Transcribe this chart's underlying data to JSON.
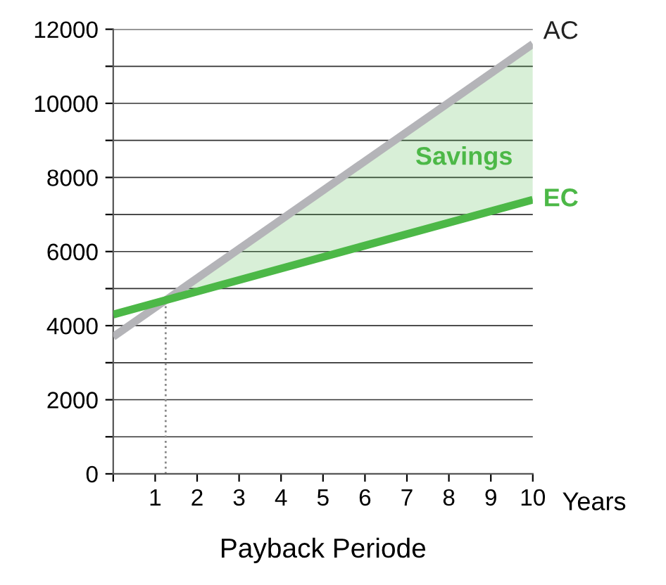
{
  "chart_data": {
    "type": "line",
    "xlabel": "Payback Periode",
    "series": [
      {
        "name": "AC",
        "color": "#b4b4b8",
        "x": [
          0,
          10
        ],
        "values": [
          3700,
          11600
        ]
      },
      {
        "name": "EC",
        "color": "#4cb847",
        "x": [
          0,
          1.25,
          10
        ],
        "values": [
          4300,
          4690,
          7400
        ],
        "lower": [
          null,
          4690,
          7400
        ],
        "upper": [
          null,
          4690,
          11600
        ]
      }
    ],
    "xlim": [
      0,
      10
    ],
    "xticks": [
      {
        "value": 0,
        "label": null
      },
      1,
      2,
      3,
      4,
      5,
      6,
      7,
      8,
      9,
      10
    ],
    "ylim": [
      0,
      12000
    ],
    "yticks": [
      0,
      {
        "value": 1000,
        "label": null
      },
      2000,
      {
        "value": 3000,
        "label": null
      },
      4000,
      {
        "value": 5000,
        "label": null
      },
      6000,
      {
        "value": 7000,
        "label": null
      },
      8000,
      {
        "value": 9000,
        "label": null
      },
      10000,
      {
        "value": 11000,
        "label": null
      },
      12000
    ],
    "grid": "y",
    "ref_lines": [
      {
        "axis": "x",
        "value": 1.25,
        "color": "#888888",
        "line_style": "dotted"
      }
    ],
    "annotations": [
      "Savings",
      "Years"
    ],
    "legend": false
  }
}
